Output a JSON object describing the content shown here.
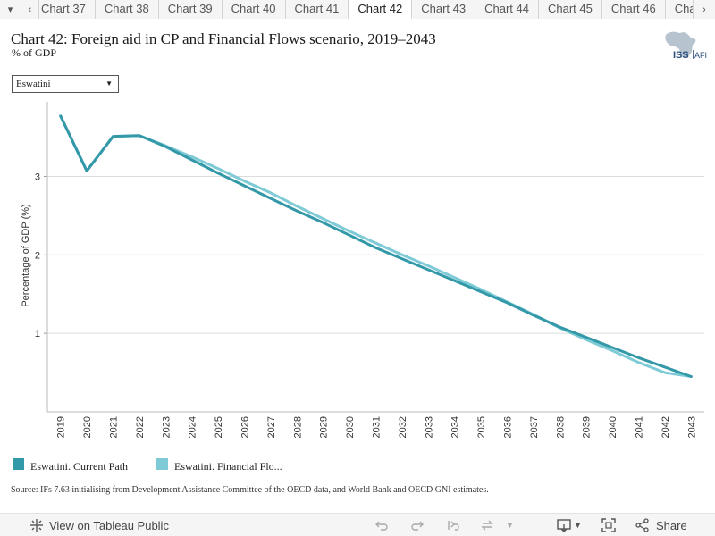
{
  "tabs": {
    "prev_label": "‹",
    "next_label": "›",
    "collapse_label": "▾",
    "items": [
      "Chart 37",
      "Chart 38",
      "Chart 39",
      "Chart 40",
      "Chart 41",
      "Chart 42",
      "Chart 43",
      "Chart 44",
      "Chart 45",
      "Chart 46",
      "Char"
    ],
    "active_index": 5
  },
  "header": {
    "title": "Chart 42: Foreign aid in CP and Financial Flows scenario, 2019–2043",
    "subtitle": "% of GDP",
    "logo_text_left": "ISS",
    "logo_text_right": "AFI"
  },
  "filter": {
    "selected": "Eswatini"
  },
  "chart_data": {
    "type": "line",
    "title": "Chart 42: Foreign aid in CP and Financial Flows scenario, 2019–2043",
    "subtitle": "% of GDP",
    "xlabel": "",
    "ylabel": "Percentage of GDP (%)",
    "ylim": [
      0.0,
      3.95
    ],
    "yticks": [
      1,
      2,
      3
    ],
    "grid": true,
    "x": [
      2019,
      2020,
      2021,
      2022,
      2023,
      2024,
      2025,
      2026,
      2027,
      2028,
      2029,
      2030,
      2031,
      2032,
      2033,
      2034,
      2035,
      2036,
      2037,
      2038,
      2039,
      2040,
      2041,
      2042,
      2043
    ],
    "series": [
      {
        "name": "Eswatini. Current Path",
        "color": "#3399a8",
        "values": [
          3.77,
          3.07,
          3.51,
          3.52,
          3.38,
          3.21,
          3.04,
          2.88,
          2.72,
          2.56,
          2.41,
          2.25,
          2.09,
          1.95,
          1.81,
          1.67,
          1.53,
          1.39,
          1.23,
          1.08,
          0.95,
          0.82,
          0.69,
          0.57,
          0.45
        ]
      },
      {
        "name": "Eswatini. Financial Flo...",
        "color": "#7ecad6",
        "values": [
          3.77,
          3.07,
          3.51,
          3.52,
          3.39,
          3.25,
          3.1,
          2.94,
          2.79,
          2.62,
          2.46,
          2.3,
          2.15,
          2.0,
          1.86,
          1.71,
          1.56,
          1.4,
          1.24,
          1.07,
          0.92,
          0.78,
          0.63,
          0.5,
          0.45
        ]
      }
    ],
    "legend_position": "bottom-left"
  },
  "source": "Source: IFs 7.63 initialising from Development Assistance Committee of the OECD data, and World Bank and OECD GNI estimates.",
  "toolbar": {
    "view_label": "View on Tableau Public",
    "share_label": "Share"
  }
}
